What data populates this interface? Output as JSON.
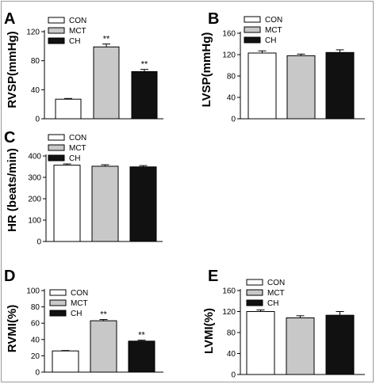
{
  "legend_labels": [
    "CON",
    "MCT",
    "CH"
  ],
  "significance_mark": "**",
  "colors": {
    "CON": "#ffffff",
    "MCT": "#c8c8c8",
    "CH": "#111111",
    "axis": "#000000",
    "frame": "#9a9a9a"
  },
  "chart_data": [
    {
      "panel": "A",
      "type": "bar",
      "categories": [
        "CON",
        "MCT",
        "CH"
      ],
      "values": [
        27,
        99,
        65
      ],
      "errors": [
        1,
        4,
        3
      ],
      "marks": [
        "",
        "**",
        "**"
      ],
      "ylabel": "RVSP(mmHg)",
      "ylim": [
        0,
        120
      ],
      "yticks": [
        "0",
        "40",
        "80",
        "120"
      ],
      "legend": {
        "labels": [
          "CON",
          "MCT",
          "CH"
        ],
        "placement": "top-left"
      },
      "grid": false
    },
    {
      "panel": "B",
      "type": "bar",
      "categories": [
        "CON",
        "MCT",
        "CH"
      ],
      "values": [
        123,
        118,
        124
      ],
      "errors": [
        4,
        3,
        5
      ],
      "marks": [
        "",
        "",
        ""
      ],
      "ylabel": "LVSP(mmHg)",
      "ylim": [
        0,
        160
      ],
      "yticks": [
        "0",
        "40",
        "80",
        "120",
        "160"
      ],
      "legend": {
        "labels": [
          "CON",
          "MCT",
          "CH"
        ],
        "placement": "top-left"
      },
      "grid": false
    },
    {
      "panel": "C",
      "type": "bar",
      "categories": [
        "CON",
        "MCT",
        "CH"
      ],
      "values": [
        357,
        352,
        349
      ],
      "errors": [
        6,
        7,
        6
      ],
      "marks": [
        "",
        "",
        ""
      ],
      "ylabel": "HR (beats/min)",
      "ylim": [
        0,
        400
      ],
      "yticks": [
        "0",
        "100",
        "200",
        "300",
        "400"
      ],
      "legend": {
        "labels": [
          "CON",
          "MCT",
          "CH"
        ],
        "placement": "top-left"
      },
      "grid": false
    },
    {
      "panel": "D",
      "type": "bar",
      "categories": [
        "CON",
        "MCT",
        "CH"
      ],
      "values": [
        26,
        63,
        38
      ],
      "errors": [
        0.5,
        1.5,
        1.2
      ],
      "marks": [
        "",
        "**",
        "**"
      ],
      "ylabel": "RVMI(%)",
      "ylim": [
        0,
        100
      ],
      "yticks": [
        "0",
        "20",
        "40",
        "60",
        "80",
        "100"
      ],
      "legend": {
        "labels": [
          "CON",
          "MCT",
          "CH"
        ],
        "placement": "top-left"
      },
      "grid": false
    },
    {
      "panel": "E",
      "type": "bar",
      "categories": [
        "CON",
        "MCT",
        "CH"
      ],
      "values": [
        120,
        108,
        113
      ],
      "errors": [
        3,
        4,
        7
      ],
      "marks": [
        "",
        "",
        ""
      ],
      "ylabel": "LVMI(%)",
      "ylim": [
        0,
        160
      ],
      "yticks": [
        "0",
        "40",
        "80",
        "120",
        "160"
      ],
      "legend": {
        "labels": [
          "CON",
          "MCT",
          "CH"
        ],
        "placement": "top-left"
      },
      "grid": false
    }
  ]
}
